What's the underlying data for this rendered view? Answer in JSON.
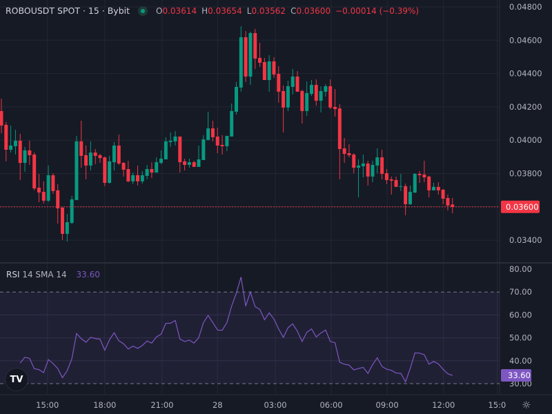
{
  "header": {
    "symbol": "ROBOUSDT SPOT · 15 · Bybit",
    "market_status": "open",
    "open_label": "O",
    "open": "0.03614",
    "high_label": "H",
    "high": "0.03654",
    "low_label": "L",
    "low": "0.03562",
    "close_label": "C",
    "close": "0.03600",
    "change": "−0.00014 (−0.39%)"
  },
  "price_axis": {
    "ticks": [
      "0.04800",
      "0.04600",
      "0.04400",
      "0.04200",
      "0.04000",
      "0.03800",
      "0.03600",
      "0.03400"
    ],
    "current_price_label": "0.03600"
  },
  "time_axis": {
    "ticks": [
      "15:00",
      "18:00",
      "21:00",
      "28",
      "03:00",
      "06:00",
      "09:00",
      "12:00",
      "15:0"
    ]
  },
  "rsi": {
    "name": "RSI",
    "params": "14 SMA 14",
    "value": "33.60",
    "ticks": [
      "80.00",
      "70.00",
      "60.00",
      "50.00",
      "40.00",
      "30.00"
    ],
    "upper_band": 70,
    "lower_band": 30,
    "values": [
      39.0,
      41.5,
      41.0,
      36.5,
      36.1,
      34.8,
      40.5,
      38.8,
      36.6,
      32.6,
      35.6,
      40.8,
      51.9,
      49.6,
      48.1,
      50.2,
      49.7,
      49.4,
      44.6,
      49.1,
      52.2,
      48.7,
      47.4,
      45.1,
      46.4,
      45.4,
      46.7,
      48.6,
      47.7,
      50.4,
      51.6,
      56.3,
      56.4,
      57.6,
      49.4,
      48.4,
      49.0,
      47.7,
      50.1,
      56.6,
      59.8,
      56.7,
      53.4,
      53.3,
      56.7,
      63.9,
      69.5,
      76.5,
      63.9,
      70.0,
      63.6,
      62.4,
      57.9,
      60.9,
      58.2,
      53.9,
      50.2,
      54.4,
      56.1,
      52.9,
      48.4,
      52.4,
      53.9,
      50.4,
      52.1,
      53.4,
      48.4,
      47.9,
      39.3,
      38.5,
      38.1,
      36.0,
      36.6,
      37.1,
      34.5,
      38.3,
      41.3,
      37.5,
      36.3,
      35.8,
      34.6,
      34.5,
      30.8,
      36.6,
      43.4,
      43.3,
      42.6,
      38.5,
      39.7,
      38.6,
      36.3,
      34.3,
      33.6
    ]
  },
  "logo": "TV",
  "colors": {
    "up": "#089981",
    "down": "#f23645",
    "rsi": "#7e57c2",
    "background": "#161a25",
    "text": "#d1d4dc"
  },
  "chart_data": {
    "type": "candlestick",
    "interval": "15",
    "ohlc": [
      [
        0.04175,
        0.04249,
        0.04042,
        0.04088
      ],
      [
        0.04092,
        0.04109,
        0.03873,
        0.03943
      ],
      [
        0.03943,
        0.04088,
        0.03926,
        0.03968
      ],
      [
        0.03964,
        0.04063,
        0.03914,
        0.03997
      ],
      [
        0.03997,
        0.04038,
        0.03761,
        0.03864
      ],
      [
        0.03864,
        0.0396,
        0.03811,
        0.03939
      ],
      [
        0.03939,
        0.03997,
        0.03852,
        0.0391
      ],
      [
        0.03914,
        0.03926,
        0.03699,
        0.03711
      ],
      [
        0.03715,
        0.03798,
        0.03628,
        0.03686
      ],
      [
        0.0369,
        0.03753,
        0.0362,
        0.03637
      ],
      [
        0.03637,
        0.03848,
        0.03628,
        0.0379
      ],
      [
        0.0379,
        0.03802,
        0.03678,
        0.03695
      ],
      [
        0.03699,
        0.03736,
        0.035,
        0.03591
      ],
      [
        0.03595,
        0.03599,
        0.03401,
        0.03438
      ],
      [
        0.03438,
        0.03558,
        0.03392,
        0.03508
      ],
      [
        0.03504,
        0.03666,
        0.03496,
        0.03645
      ],
      [
        0.03641,
        0.04026,
        0.03641,
        0.03993
      ],
      [
        0.03993,
        0.04117,
        0.03835,
        0.03906
      ],
      [
        0.0391,
        0.03968,
        0.03765,
        0.03848
      ],
      [
        0.03848,
        0.03993,
        0.03819,
        0.03926
      ],
      [
        0.03926,
        0.03947,
        0.03856,
        0.03906
      ],
      [
        0.0391,
        0.03918,
        0.03864,
        0.03893
      ],
      [
        0.03897,
        0.03902,
        0.03724,
        0.03744
      ],
      [
        0.03744,
        0.03906,
        0.0374,
        0.03873
      ],
      [
        0.03868,
        0.03989,
        0.03819,
        0.03968
      ],
      [
        0.03968,
        0.04034,
        0.03852,
        0.0386
      ],
      [
        0.03864,
        0.03868,
        0.03782,
        0.03823
      ],
      [
        0.03827,
        0.03877,
        0.03748,
        0.03753
      ],
      [
        0.03753,
        0.03806,
        0.03736,
        0.0379
      ],
      [
        0.0379,
        0.03848,
        0.03728,
        0.03753
      ],
      [
        0.03753,
        0.03815,
        0.0374,
        0.0379
      ],
      [
        0.03786,
        0.03852,
        0.03765,
        0.03827
      ],
      [
        0.03827,
        0.03868,
        0.03773,
        0.03806
      ],
      [
        0.03806,
        0.03897,
        0.03806,
        0.03868
      ],
      [
        0.03864,
        0.03939,
        0.03856,
        0.03889
      ],
      [
        0.03885,
        0.04018,
        0.03885,
        0.03993
      ],
      [
        0.03989,
        0.04047,
        0.0396,
        0.03997
      ],
      [
        0.03993,
        0.04055,
        0.03968,
        0.04022
      ],
      [
        0.04022,
        0.04022,
        0.03806,
        0.03868
      ],
      [
        0.03873,
        0.03889,
        0.03819,
        0.03852
      ],
      [
        0.03852,
        0.03889,
        0.03835,
        0.03868
      ],
      [
        0.03868,
        0.03877,
        0.0384,
        0.0384
      ],
      [
        0.0384,
        0.03968,
        0.0384,
        0.03885
      ],
      [
        0.03881,
        0.0403,
        0.03881,
        0.04005
      ],
      [
        0.04001,
        0.04171,
        0.04001,
        0.04071
      ],
      [
        0.04071,
        0.04117,
        0.03993,
        0.04018
      ],
      [
        0.04022,
        0.04075,
        0.03922,
        0.03968
      ],
      [
        0.03972,
        0.0403,
        0.03914,
        0.03964
      ],
      [
        0.03964,
        0.04026,
        0.03935,
        0.04026
      ],
      [
        0.04022,
        0.0422,
        0.04022,
        0.04175
      ],
      [
        0.04171,
        0.04349,
        0.04154,
        0.0432
      ],
      [
        0.04316,
        0.04684,
        0.04291,
        0.04618
      ],
      [
        0.04618,
        0.04655,
        0.04349,
        0.04382
      ],
      [
        0.04382,
        0.04651,
        0.04332,
        0.04643
      ],
      [
        0.04643,
        0.04668,
        0.04427,
        0.0449
      ],
      [
        0.04494,
        0.04585,
        0.0444,
        0.04465
      ],
      [
        0.04469,
        0.04494,
        0.04361,
        0.04361
      ],
      [
        0.04361,
        0.0451,
        0.04291,
        0.04473
      ],
      [
        0.04473,
        0.04498,
        0.04374,
        0.04394
      ],
      [
        0.04398,
        0.04444,
        0.04225,
        0.04291
      ],
      [
        0.04295,
        0.04328,
        0.04047,
        0.04196
      ],
      [
        0.04196,
        0.04357,
        0.04175,
        0.04324
      ],
      [
        0.0432,
        0.04427,
        0.04274,
        0.04382
      ],
      [
        0.04382,
        0.04415,
        0.04291,
        0.04291
      ],
      [
        0.04295,
        0.04303,
        0.041,
        0.04175
      ],
      [
        0.04175,
        0.04353,
        0.04146,
        0.04283
      ],
      [
        0.04278,
        0.04361,
        0.04266,
        0.04332
      ],
      [
        0.04332,
        0.04365,
        0.04208,
        0.04237
      ],
      [
        0.04237,
        0.04324,
        0.04167,
        0.04295
      ],
      [
        0.04291,
        0.04336,
        0.04262,
        0.04324
      ],
      [
        0.04324,
        0.04365,
        0.04187,
        0.04196
      ],
      [
        0.042,
        0.04307,
        0.04142,
        0.04187
      ],
      [
        0.04191,
        0.04216,
        0.03765,
        0.03947
      ],
      [
        0.03951,
        0.04013,
        0.03864,
        0.03918
      ],
      [
        0.03922,
        0.03976,
        0.03897,
        0.0391
      ],
      [
        0.03914,
        0.03922,
        0.03802,
        0.03835
      ],
      [
        0.03835,
        0.03885,
        0.03657,
        0.03848
      ],
      [
        0.03844,
        0.03914,
        0.03777,
        0.0386
      ],
      [
        0.0386,
        0.03877,
        0.03728,
        0.03782
      ],
      [
        0.03782,
        0.03877,
        0.03748,
        0.03852
      ],
      [
        0.03848,
        0.03951,
        0.03802,
        0.03897
      ],
      [
        0.03897,
        0.03943,
        0.03765,
        0.03798
      ],
      [
        0.03802,
        0.03827,
        0.03736,
        0.03761
      ],
      [
        0.03765,
        0.03782,
        0.03674,
        0.03757
      ],
      [
        0.03761,
        0.03782,
        0.0372,
        0.0372
      ],
      [
        0.0372,
        0.03798,
        0.03695,
        0.03724
      ],
      [
        0.03724,
        0.0374,
        0.0355,
        0.03616
      ],
      [
        0.03616,
        0.03728,
        0.03612,
        0.0369
      ],
      [
        0.03686,
        0.03802,
        0.03682,
        0.03798
      ],
      [
        0.03798,
        0.03815,
        0.03744,
        0.0379
      ],
      [
        0.03794,
        0.03877,
        0.03748,
        0.03777
      ],
      [
        0.03782,
        0.03786,
        0.03657,
        0.03699
      ],
      [
        0.03699,
        0.03744,
        0.03699,
        0.0372
      ],
      [
        0.0372,
        0.03748,
        0.03674,
        0.03699
      ],
      [
        0.03703,
        0.03707,
        0.03616,
        0.03649
      ],
      [
        0.03653,
        0.03674,
        0.03579,
        0.03608
      ],
      [
        0.03614,
        0.03654,
        0.03562,
        0.036
      ]
    ],
    "ylim": [
      0.0334,
      0.0484
    ],
    "current_price": 0.036,
    "x_tick_labels": [
      "15:00",
      "18:00",
      "21:00",
      "28",
      "03:00",
      "06:00",
      "09:00",
      "12:00",
      "15:0"
    ],
    "grid": true
  }
}
